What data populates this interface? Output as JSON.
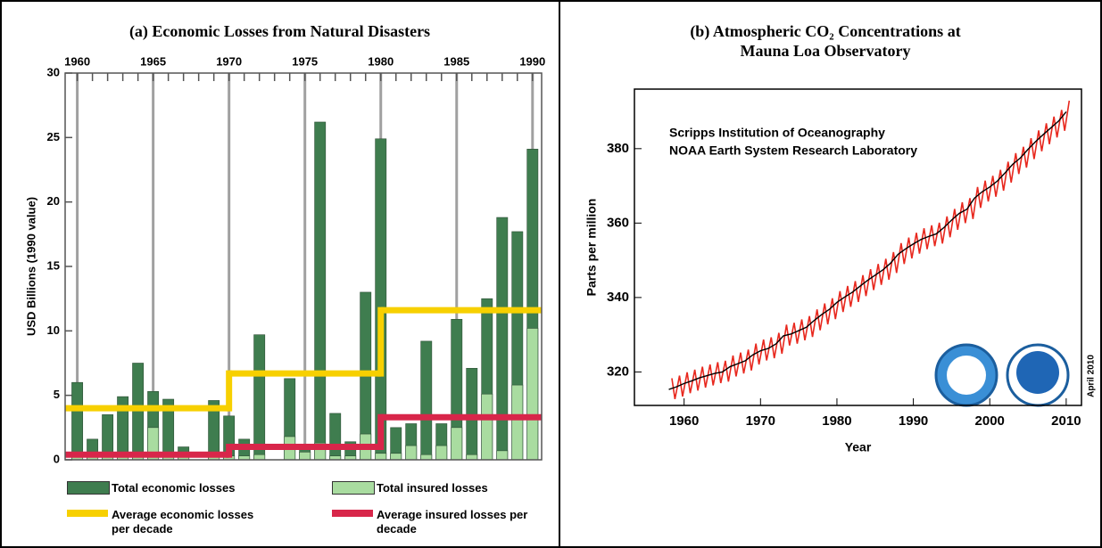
{
  "chart_data": [
    {
      "type": "bar",
      "title": "(a) Economic Losses from Natural Disasters",
      "y_label": "USD Billions (1990 value)",
      "x": [
        1960,
        1961,
        1962,
        1963,
        1964,
        1965,
        1966,
        1967,
        1968,
        1969,
        1970,
        1971,
        1972,
        1973,
        1974,
        1975,
        1976,
        1977,
        1978,
        1979,
        1980,
        1981,
        1982,
        1983,
        1984,
        1985,
        1986,
        1987,
        1988,
        1989,
        1990
      ],
      "xlim": [
        1959.2,
        1990.6
      ],
      "xticks": [
        1960,
        1965,
        1970,
        1975,
        1980,
        1985,
        1990
      ],
      "ylim": [
        0,
        30
      ],
      "yticks": [
        0,
        5,
        10,
        15,
        20,
        25,
        30
      ],
      "grid": true,
      "series": [
        {
          "name": "Total economic losses",
          "type": "bar",
          "color": "#3f7d4f",
          "values": [
            6.0,
            1.6,
            3.5,
            4.9,
            7.5,
            5.3,
            4.7,
            1.0,
            null,
            4.6,
            3.4,
            1.6,
            9.7,
            null,
            6.3,
            1.2,
            26.2,
            3.6,
            1.4,
            13.0,
            24.9,
            2.5,
            2.8,
            9.2,
            2.8,
            10.9,
            7.1,
            12.5,
            18.8,
            17.7,
            24.1
          ]
        },
        {
          "name": "Total insured losses",
          "type": "bar",
          "color": "#a9dca0",
          "values": [
            0.3,
            0.2,
            0.3,
            0.3,
            0.3,
            2.5,
            0.3,
            0.3,
            null,
            0.6,
            0.3,
            0.3,
            0.4,
            null,
            1.8,
            0.6,
            1.3,
            0.3,
            0.3,
            2.0,
            0.5,
            0.5,
            1.1,
            0.4,
            1.1,
            2.5,
            0.4,
            5.1,
            0.7,
            5.8,
            10.2
          ]
        },
        {
          "name": "Average economic losses per decade",
          "type": "step",
          "color": "#f7d000",
          "x": [
            1960,
            1970,
            1980
          ],
          "values": [
            4.0,
            6.7,
            11.6
          ]
        },
        {
          "name": "Average insured losses per decade",
          "type": "step",
          "color": "#d8264a",
          "x": [
            1960,
            1970,
            1980
          ],
          "values": [
            0.4,
            1.0,
            3.3
          ]
        }
      ]
    },
    {
      "type": "line",
      "title": "(b) Atmospheric CO₂ Concentrations at Mauna Loa Observatory",
      "annotations": [
        "Scripps Institution of Oceanography",
        "NOAA Earth System Research Laboratory",
        "April 2010"
      ],
      "x_label": "Year",
      "y_label": "Parts per million",
      "xlim": [
        1953.5,
        2012
      ],
      "xticks": [
        1960,
        1970,
        1980,
        1990,
        2000,
        2010
      ],
      "ylim": [
        311,
        396
      ],
      "yticks": [
        320,
        340,
        360,
        380
      ],
      "series": [
        {
          "color": "#e8281e",
          "x": [
            1958.4,
            1958.8,
            1959.4,
            1959.8,
            1960.4,
            1960.8,
            1961.4,
            1961.8,
            1962.4,
            1962.8,
            1963.4,
            1963.8,
            1964.4,
            1964.8,
            1965.4,
            1965.8,
            1966.4,
            1966.8,
            1967.4,
            1967.8,
            1968.4,
            1968.8,
            1969.4,
            1969.8,
            1970.4,
            1970.8,
            1971.4,
            1971.8,
            1972.4,
            1972.8,
            1973.4,
            1973.8,
            1974.4,
            1974.8,
            1975.4,
            1975.8,
            1976.4,
            1976.8,
            1977.4,
            1977.8,
            1978.4,
            1978.8,
            1979.4,
            1979.8,
            1980.4,
            1980.8,
            1981.4,
            1981.8,
            1982.4,
            1982.8,
            1983.4,
            1983.8,
            1984.4,
            1984.8,
            1985.4,
            1985.8,
            1986.4,
            1986.8,
            1987.4,
            1987.8,
            1988.4,
            1988.8,
            1989.4,
            1989.8,
            1990.4,
            1990.8,
            1991.4,
            1991.8,
            1992.4,
            1992.8,
            1993.4,
            1993.8,
            1994.4,
            1994.8,
            1995.4,
            1995.8,
            1996.4,
            1996.8,
            1997.4,
            1997.8,
            1998.4,
            1998.8,
            1999.4,
            1999.8,
            2000.4,
            2000.8,
            2001.4,
            2001.8,
            2002.4,
            2002.8,
            2003.4,
            2003.8,
            2004.4,
            2004.8,
            2005.4,
            2005.8,
            2006.4,
            2006.8,
            2007.4,
            2007.8,
            2008.4,
            2008.8,
            2009.4,
            2009.8,
            2010.4
          ],
          "values": [
            318.3,
            312.7,
            319.0,
            313.4,
            319.9,
            314.3,
            320.6,
            315.0,
            321.4,
            315.8,
            322.0,
            316.4,
            322.6,
            317.0,
            323.0,
            317.4,
            324.4,
            318.8,
            325.2,
            319.6,
            326.0,
            320.4,
            327.6,
            322.0,
            328.7,
            323.1,
            329.3,
            323.7,
            330.5,
            324.9,
            332.7,
            327.1,
            333.2,
            327.6,
            334.1,
            328.5,
            335.0,
            329.4,
            336.8,
            331.2,
            338.4,
            332.8,
            339.8,
            334.2,
            341.7,
            336.1,
            343.1,
            337.5,
            344.4,
            338.8,
            346.0,
            340.4,
            347.6,
            342.0,
            349.0,
            343.4,
            350.4,
            344.8,
            352.2,
            346.6,
            354.6,
            349.0,
            356.1,
            350.5,
            357.4,
            351.8,
            358.6,
            353.0,
            359.4,
            353.8,
            360.1,
            354.5,
            361.8,
            356.2,
            363.8,
            358.2,
            365.6,
            360.0,
            366.7,
            361.1,
            369.7,
            364.1,
            371.4,
            365.8,
            372.7,
            367.1,
            374.3,
            368.7,
            376.5,
            370.9,
            378.8,
            373.2,
            380.5,
            374.9,
            382.8,
            377.2,
            384.9,
            379.3,
            386.8,
            381.2,
            388.6,
            383.0,
            390.4,
            384.8,
            392.9
          ]
        },
        {
          "color": "#000000",
          "x": [
            1958,
            1959,
            1960,
            1961,
            1962,
            1963,
            1964,
            1965,
            1966,
            1967,
            1968,
            1969,
            1970,
            1971,
            1972,
            1973,
            1974,
            1975,
            1976,
            1977,
            1978,
            1979,
            1980,
            1981,
            1982,
            1983,
            1984,
            1985,
            1986,
            1987,
            1988,
            1989,
            1990,
            1991,
            1992,
            1993,
            1994,
            1995,
            1996,
            1997,
            1998,
            1999,
            2000,
            2001,
            2002,
            2003,
            2004,
            2005,
            2006,
            2007,
            2008,
            2009,
            2010
          ],
          "values": [
            315.3,
            316.0,
            316.9,
            317.6,
            318.4,
            319.0,
            319.6,
            320.0,
            321.4,
            322.2,
            323.0,
            324.6,
            325.7,
            326.3,
            327.5,
            329.7,
            330.2,
            331.1,
            332.0,
            333.8,
            335.4,
            336.8,
            338.7,
            340.1,
            341.4,
            343.0,
            344.6,
            346.0,
            347.4,
            349.2,
            351.6,
            353.1,
            354.4,
            355.6,
            356.4,
            357.1,
            358.8,
            360.8,
            362.6,
            363.7,
            366.7,
            368.4,
            369.7,
            371.3,
            373.5,
            375.8,
            377.5,
            379.8,
            381.9,
            383.8,
            385.6,
            387.4,
            389.9
          ]
        }
      ]
    }
  ]
}
